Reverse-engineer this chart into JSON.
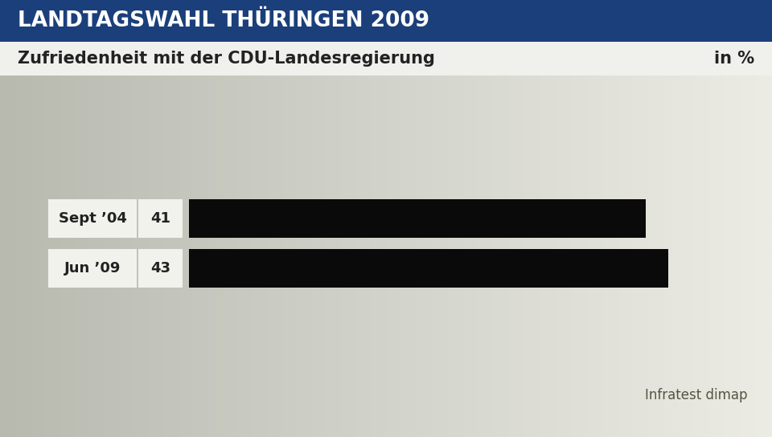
{
  "title": "LANDTAGSWAHL THÜRINGEN 2009",
  "subtitle": "Zufriedenheit mit der CDU-Landesregierung",
  "subtitle_right": "in %",
  "source": "Infratest dimap",
  "categories": [
    "Sept ’04",
    "Jun ’09"
  ],
  "values": [
    41,
    43
  ],
  "bar_color": "#0a0a0a",
  "title_bg_color": "#1b3f7a",
  "title_text_color": "#ffffff",
  "label_text_color": "#222222",
  "value_text_color": "#222222",
  "source_text_color": "#555544",
  "max_value": 48,
  "figsize": [
    9.6,
    5.44
  ],
  "dpi": 100
}
